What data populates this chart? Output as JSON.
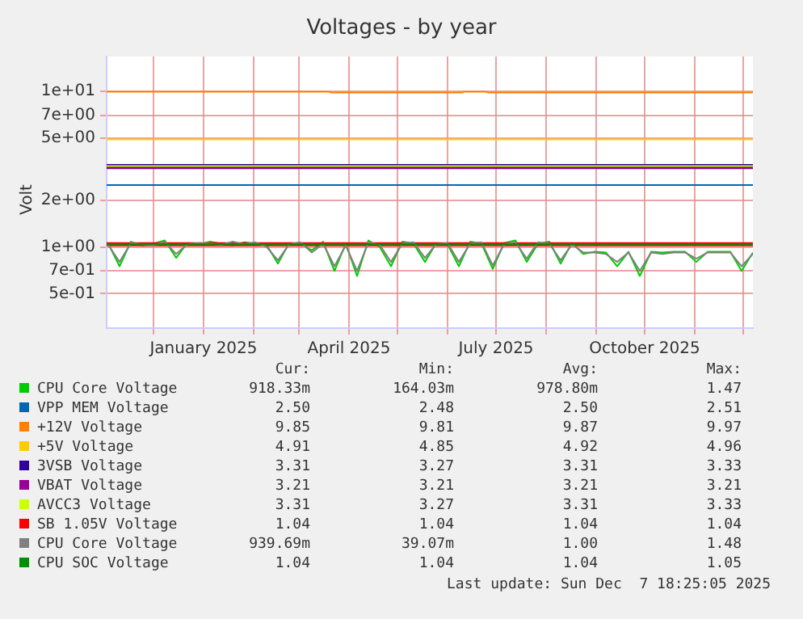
{
  "chart_data": {
    "type": "line",
    "title": "Voltages - by year",
    "ylabel": "Volt",
    "log": "y",
    "grid": true,
    "legend": "bottom",
    "marker": "none",
    "xlim": [
      "2024-11-02",
      "2025-12-07"
    ],
    "xticks": [
      {
        "value": "2024-12-01",
        "label": null
      },
      {
        "value": "2025-01-01",
        "label": "January 2025"
      },
      {
        "value": "2025-02-01",
        "label": null
      },
      {
        "value": "2025-03-01",
        "label": null
      },
      {
        "value": "2025-04-01",
        "label": "April 2025"
      },
      {
        "value": "2025-05-01",
        "label": null
      },
      {
        "value": "2025-06-01",
        "label": null
      },
      {
        "value": "2025-07-01",
        "label": "July 2025"
      },
      {
        "value": "2025-08-01",
        "label": null
      },
      {
        "value": "2025-09-01",
        "label": null
      },
      {
        "value": "2025-10-01",
        "label": "October 2025"
      },
      {
        "value": "2025-11-01",
        "label": null
      },
      {
        "value": "2025-12-01",
        "label": null
      }
    ],
    "ylim": [
      0.32,
      16.8
    ],
    "yticks": [
      {
        "value": 0.5,
        "label": "5e-01"
      },
      {
        "value": 0.7,
        "label": "7e-01"
      },
      {
        "value": 1,
        "label": "1e+00"
      },
      {
        "value": 2,
        "label": "2e+00"
      },
      {
        "value": 5,
        "label": "5e+00"
      },
      {
        "value": 7,
        "label": "7e+00"
      },
      {
        "value": 10,
        "label": "1e+01"
      }
    ],
    "x": [
      "2024-11-03",
      "2024-11-10",
      "2024-11-17",
      "2024-11-24",
      "2024-12-01",
      "2024-12-08",
      "2024-12-15",
      "2024-12-22",
      "2024-12-29",
      "2025-01-05",
      "2025-01-12",
      "2025-01-19",
      "2025-01-26",
      "2025-02-02",
      "2025-02-09",
      "2025-02-16",
      "2025-02-23",
      "2025-03-02",
      "2025-03-09",
      "2025-03-16",
      "2025-03-23",
      "2025-03-30",
      "2025-04-06",
      "2025-04-13",
      "2025-04-20",
      "2025-04-27",
      "2025-05-04",
      "2025-05-11",
      "2025-05-18",
      "2025-05-25",
      "2025-06-01",
      "2025-06-08",
      "2025-06-15",
      "2025-06-22",
      "2025-06-29",
      "2025-07-06",
      "2025-07-13",
      "2025-07-20",
      "2025-07-27",
      "2025-08-03",
      "2025-08-10",
      "2025-08-17",
      "2025-08-24",
      "2025-08-31",
      "2025-09-07",
      "2025-09-14",
      "2025-09-21",
      "2025-09-28",
      "2025-10-05",
      "2025-10-12",
      "2025-10-19",
      "2025-10-26",
      "2025-11-02",
      "2025-11-09",
      "2025-11-16",
      "2025-11-23",
      "2025-11-30",
      "2025-12-07"
    ],
    "series": [
      {
        "name": "CPU Core Voltage",
        "color": "#00cc00",
        "values": [
          1.05,
          0.75,
          1.08,
          1.02,
          1.05,
          1.1,
          0.85,
          1.06,
          1.04,
          1.08,
          1.05,
          1.02,
          1.07,
          1.05,
          1.03,
          0.78,
          1.06,
          1.05,
          0.95,
          1.08,
          0.7,
          1.05,
          0.65,
          1.1,
          1.0,
          0.75,
          1.08,
          1.05,
          0.8,
          1.06,
          1.04,
          0.75,
          1.08,
          1.05,
          0.72,
          1.06,
          1.1,
          0.8,
          1.05,
          1.08,
          0.78,
          1.06,
          0.9,
          0.93,
          0.92,
          0.75,
          0.93,
          0.65,
          0.93,
          0.92,
          0.93,
          0.93,
          0.8,
          0.93,
          0.93,
          0.93,
          0.7,
          0.92
        ]
      },
      {
        "name": "VPP MEM Voltage",
        "color": "#0066b3",
        "x": [
          "2024-11-02",
          "2025-12-07"
        ],
        "values": [
          2.5,
          2.5
        ]
      },
      {
        "name": "+12V Voltage",
        "color": "#ff8000",
        "x": [
          "2024-11-02",
          "2025-03-20",
          "2025-03-21",
          "2025-06-10",
          "2025-06-11",
          "2025-06-25",
          "2025-06-26",
          "2025-12-07"
        ],
        "values": [
          9.97,
          9.97,
          9.85,
          9.85,
          9.97,
          9.97,
          9.87,
          9.87
        ]
      },
      {
        "name": "+5V Voltage",
        "color": "#ffcc00",
        "x": [
          "2024-11-02",
          "2025-12-07"
        ],
        "values": [
          4.92,
          4.92
        ]
      },
      {
        "name": "3VSB Voltage",
        "color": "#330099",
        "x": [
          "2024-11-02",
          "2025-12-07"
        ],
        "values": [
          3.31,
          3.31
        ]
      },
      {
        "name": "VBAT Voltage",
        "color": "#990099",
        "x": [
          "2024-11-02",
          "2025-12-07"
        ],
        "values": [
          3.21,
          3.21
        ]
      },
      {
        "name": "AVCC3 Voltage",
        "color": "#ccff00",
        "x": [
          "2024-11-02",
          "2025-12-07"
        ],
        "values": [
          3.31,
          3.31
        ]
      },
      {
        "name": "SB 1.05V Voltage",
        "color": "#ff0000",
        "x": [
          "2024-11-02",
          "2025-12-07"
        ],
        "values": [
          1.04,
          1.04
        ]
      },
      {
        "name": "CPU Core Voltage",
        "color": "#808080",
        "values": [
          1.03,
          0.8,
          1.06,
          1.04,
          1.02,
          1.08,
          0.9,
          1.04,
          1.06,
          1.05,
          1.03,
          1.08,
          1.04,
          1.07,
          1.0,
          0.82,
          1.04,
          1.07,
          0.92,
          1.05,
          0.75,
          1.02,
          0.7,
          1.07,
          1.03,
          0.8,
          1.05,
          1.07,
          0.85,
          1.04,
          1.06,
          0.8,
          1.05,
          1.07,
          0.76,
          1.04,
          1.07,
          0.84,
          1.07,
          1.05,
          0.82,
          1.04,
          0.92,
          0.92,
          0.9,
          0.8,
          0.92,
          0.7,
          0.92,
          0.9,
          0.92,
          0.92,
          0.84,
          0.92,
          0.92,
          0.92,
          0.75,
          0.9
        ]
      },
      {
        "name": "CPU SOC Voltage",
        "color": "#008f00",
        "x": [
          "2024-11-02",
          "2025-12-07"
        ],
        "values": [
          1.04,
          1.04
        ]
      }
    ],
    "annotations": [
      "Cur:",
      "Min:",
      "Avg:",
      "Max:",
      "918.33m",
      "164.03m",
      "978.80m",
      "1.47",
      "2.50",
      "2.48",
      "2.50",
      "2.51",
      "9.85",
      "9.81",
      "9.87",
      "9.97",
      "4.91",
      "4.85",
      "4.92",
      "4.96",
      "3.31",
      "3.27",
      "3.31",
      "3.33",
      "3.21",
      "3.21",
      "3.21",
      "3.21",
      "3.31",
      "3.27",
      "3.31",
      "3.33",
      "1.04",
      "1.04",
      "1.04",
      "1.04",
      "939.69m",
      "39.07m",
      "1.00",
      "1.48",
      "1.04",
      "1.04",
      "1.04",
      "1.05",
      "Last update: Sun Dec  7 18:25:05 2025"
    ]
  }
}
